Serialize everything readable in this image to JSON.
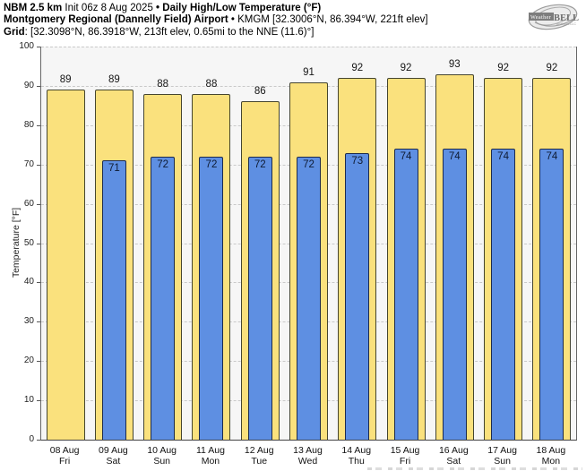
{
  "header": {
    "line1": {
      "model": "NBM 2.5 km",
      "init": " Init 06z 8 Aug 2025 ",
      "product": "• Daily High/Low Temperature (°F)"
    },
    "line2": {
      "station": "Montgomery Regional (Dannelly Field) Airport",
      "meta": " • KMGM [32.3006°N, 86.394°W, 221ft elev]"
    },
    "line3": {
      "label": "Grid",
      "value": ": [32.3098°N, 86.3918°W, 213ft elev, 0.65mi to the NNE (11.6)°]"
    }
  },
  "logo": {
    "word1": "Weather",
    "word2": "BELL",
    "tagline": "Analytics LLC"
  },
  "chart_data": {
    "type": "bar",
    "title": "Daily High/Low Temperature (°F)",
    "subtitle": "NBM 2.5 km Init 06z 8 Aug 2025 — Montgomery Regional (Dannelly Field) Airport KMGM",
    "xlabel": "",
    "ylabel": "Temperature [°F]",
    "ylim": [
      0,
      100
    ],
    "yticks": [
      0,
      10,
      20,
      30,
      40,
      50,
      60,
      70,
      80,
      90,
      100
    ],
    "grid": "horizontal dashed",
    "legend": "none",
    "colors": {
      "high_fill": "#fae17d",
      "high_stroke": "#45452f",
      "low_fill": "#5e8fe2",
      "low_stroke": "#1d2b4d",
      "plot_bg": "#f6f6f6",
      "gridline": "#c9c9c9",
      "spine": "#555555"
    },
    "days": [
      {
        "date": "08 Aug",
        "weekday": "Fri",
        "high": 89,
        "low": null
      },
      {
        "date": "09 Aug",
        "weekday": "Sat",
        "high": 89,
        "low": 71
      },
      {
        "date": "10 Aug",
        "weekday": "Sun",
        "high": 88,
        "low": 72
      },
      {
        "date": "11 Aug",
        "weekday": "Mon",
        "high": 88,
        "low": 72
      },
      {
        "date": "12 Aug",
        "weekday": "Tue",
        "high": 86,
        "low": 72
      },
      {
        "date": "13 Aug",
        "weekday": "Wed",
        "high": 91,
        "low": 72
      },
      {
        "date": "14 Aug",
        "weekday": "Thu",
        "high": 92,
        "low": 73
      },
      {
        "date": "15 Aug",
        "weekday": "Fri",
        "high": 92,
        "low": 74
      },
      {
        "date": "16 Aug",
        "weekday": "Sat",
        "high": 93,
        "low": 74
      },
      {
        "date": "17 Aug",
        "weekday": "Sun",
        "high": 92,
        "low": 74
      },
      {
        "date": "18 Aug",
        "weekday": "Mon",
        "high": 92,
        "low": 74
      }
    ],
    "series": [
      {
        "name": "Daily High",
        "values": [
          89,
          89,
          88,
          88,
          86,
          91,
          92,
          92,
          93,
          92,
          92
        ]
      },
      {
        "name": "Daily Low",
        "values": [
          null,
          71,
          72,
          72,
          72,
          72,
          73,
          74,
          74,
          74,
          74
        ]
      }
    ]
  }
}
